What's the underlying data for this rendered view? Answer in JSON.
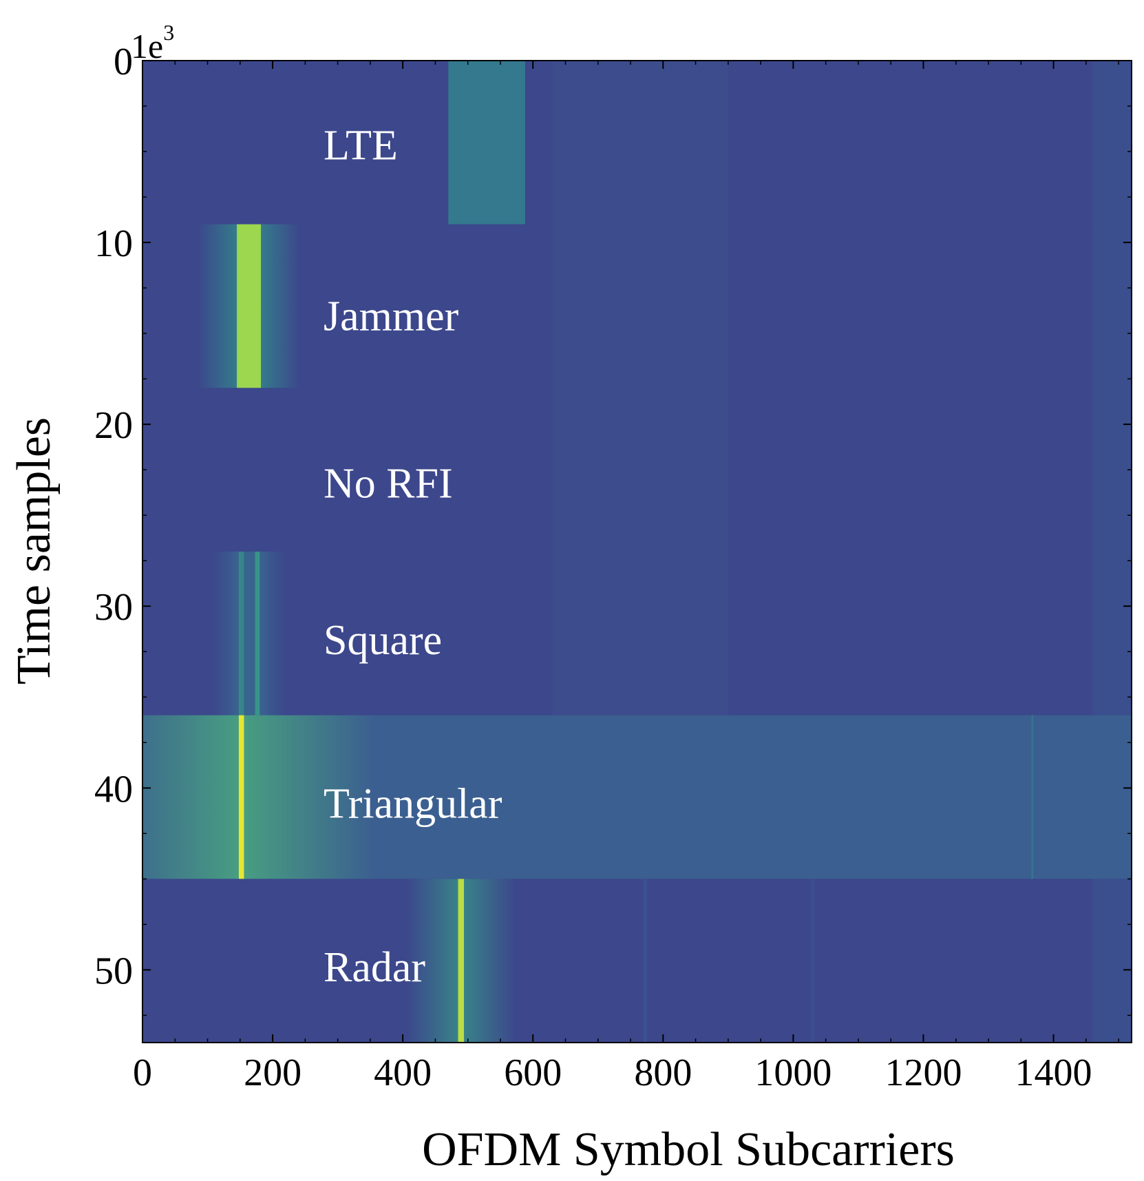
{
  "chart_data": {
    "type": "heatmap",
    "title": "",
    "xlabel": "OFDM Symbol Subcarriers",
    "ylabel": "Time samples",
    "xlim": [
      0,
      1520
    ],
    "ylim": [
      0,
      54
    ],
    "y_inverted": true,
    "y_offset_text": {
      "base": "1e",
      "exponent": "3"
    },
    "x_ticks": [
      {
        "value": 0,
        "label": "0"
      },
      {
        "value": 200,
        "label": "200"
      },
      {
        "value": 400,
        "label": "400"
      },
      {
        "value": 600,
        "label": "600"
      },
      {
        "value": 800,
        "label": "800"
      },
      {
        "value": 1000,
        "label": "1000"
      },
      {
        "value": 1200,
        "label": "1200"
      },
      {
        "value": 1400,
        "label": "1400"
      }
    ],
    "y_ticks": [
      {
        "value": 0,
        "label": "0"
      },
      {
        "value": 10,
        "label": "10"
      },
      {
        "value": 20,
        "label": "20"
      },
      {
        "value": 30,
        "label": "30"
      },
      {
        "value": 40,
        "label": "40"
      },
      {
        "value": 50,
        "label": "50"
      }
    ],
    "colormap": [
      "#3c3f8a",
      "#3b5f90",
      "#2f8a8c",
      "#4fb67a",
      "#a6d94a",
      "#f4ea2e"
    ],
    "background_level": 0.05,
    "regions": [
      {
        "label": "LTE",
        "y0": 0,
        "y1": 9,
        "label_y": 4.6,
        "level": 0.05,
        "bands": [
          {
            "x0": 470,
            "x1": 588,
            "level": 0.32
          }
        ]
      },
      {
        "label": "Jammer",
        "y0": 9,
        "y1": 18,
        "label_y": 14,
        "level": 0.05,
        "bands": [
          {
            "x0": 145,
            "x1": 182,
            "level": 0.78,
            "glow": 60
          }
        ]
      },
      {
        "label": "No RFI",
        "y0": 18,
        "y1": 27,
        "label_y": 23.2,
        "level": 0.05,
        "bands": []
      },
      {
        "label": "Square",
        "y0": 27,
        "y1": 36,
        "label_y": 31.8,
        "level": 0.05,
        "bands": [
          {
            "x0": 148,
            "x1": 156,
            "level": 0.45,
            "glow": 40
          },
          {
            "x0": 173,
            "x1": 180,
            "level": 0.45,
            "glow": 40
          }
        ]
      },
      {
        "label": "Triangular",
        "y0": 36,
        "y1": 45,
        "label_y": 40.8,
        "level": 0.2,
        "bands": [
          {
            "x0": 148,
            "x1": 156,
            "level": 0.96,
            "glow": 200
          },
          {
            "x0": 1366,
            "x1": 1369,
            "level": 0.3
          }
        ]
      },
      {
        "label": "Radar",
        "y0": 45,
        "y1": 54,
        "label_y": 49.8,
        "level": 0.05,
        "bands": [
          {
            "x0": 485,
            "x1": 494,
            "level": 0.85,
            "glow": 80
          }
        ]
      }
    ],
    "vertical_streaks": [
      {
        "x0": 630,
        "x1": 900,
        "y0": 0,
        "y1": 36,
        "level": 0.1
      },
      {
        "x0": 1460,
        "x1": 1520,
        "y0": 0,
        "y1": 36,
        "level": 0.12
      },
      {
        "x0": 770,
        "x1": 775,
        "y0": 45,
        "y1": 54,
        "level": 0.15
      },
      {
        "x0": 1028,
        "x1": 1032,
        "y0": 45,
        "y1": 54,
        "level": 0.13
      },
      {
        "x0": 1460,
        "x1": 1520,
        "y0": 45,
        "y1": 54,
        "level": 0.12
      }
    ]
  }
}
